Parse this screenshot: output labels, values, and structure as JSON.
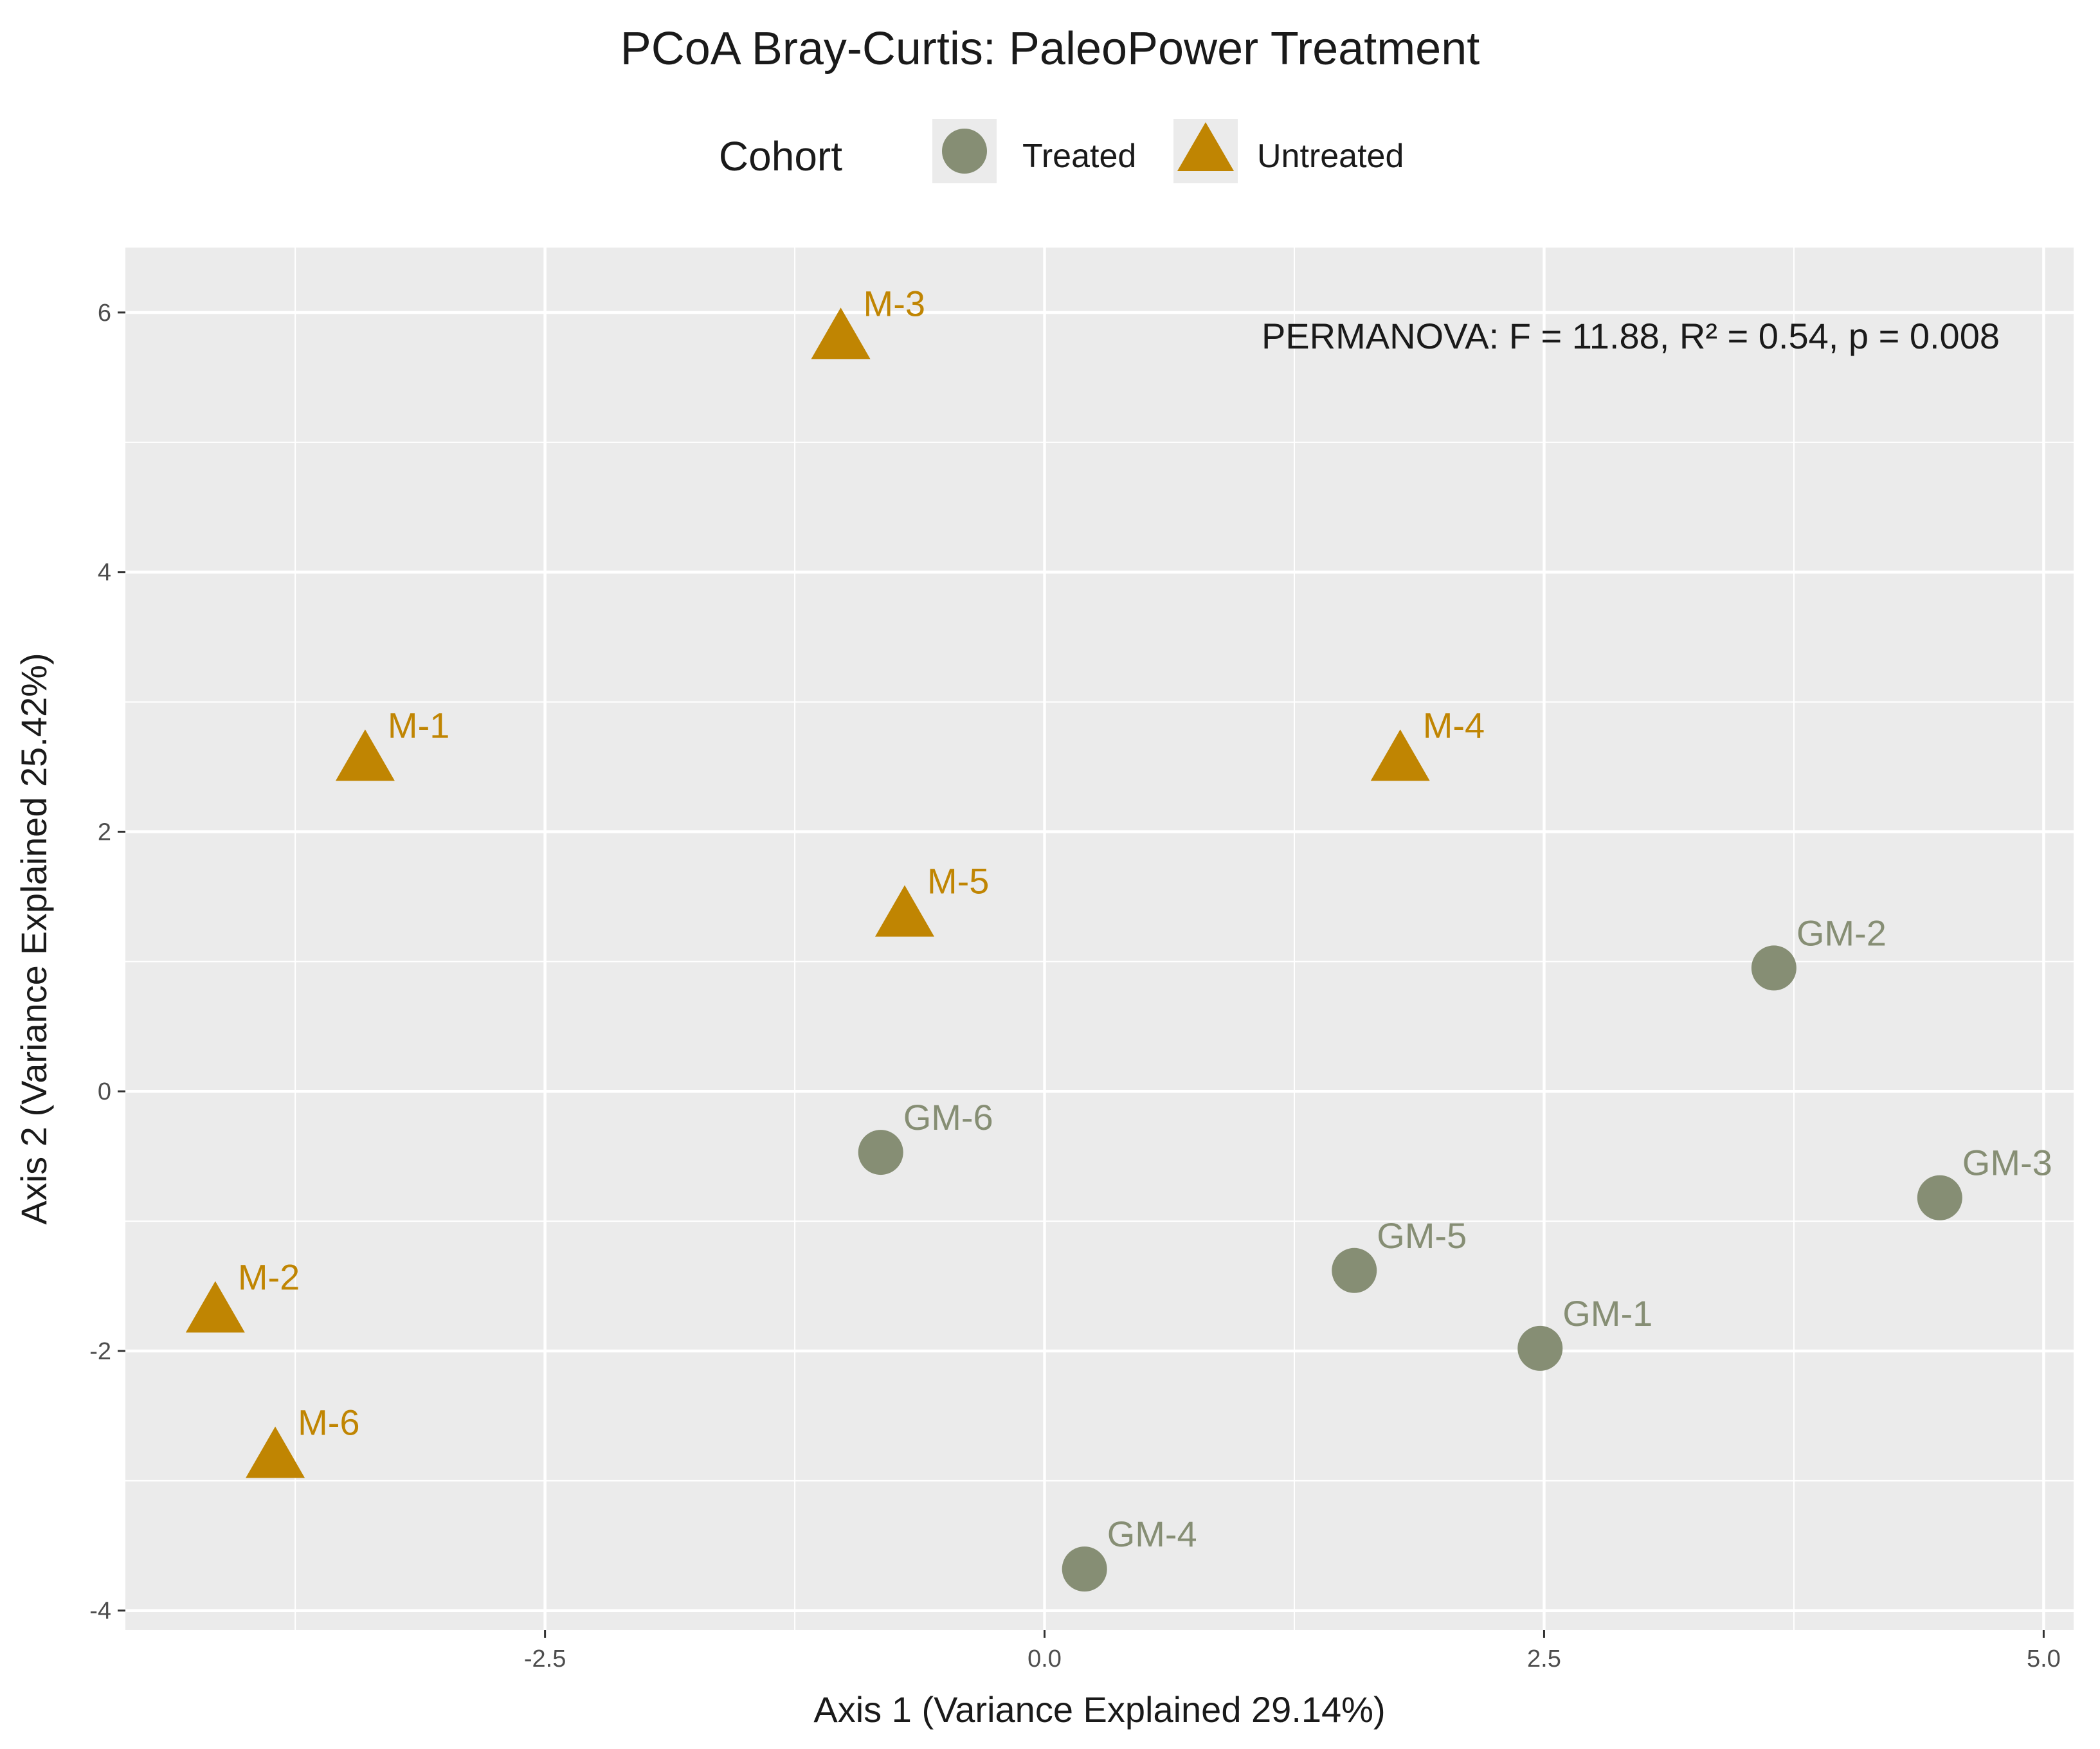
{
  "chart_data": {
    "type": "scatter",
    "title": "PCoA Bray-Curtis: PaleoPower Treatment",
    "xlabel": "Axis 1 (Variance Explained 29.14%)",
    "ylabel": "Axis 2 (Variance Explained 25.42%)",
    "xlim": [
      -4.6,
      5.15
    ],
    "ylim": [
      -4.15,
      6.5
    ],
    "x_ticks": [
      -2.5,
      0.0,
      2.5,
      5.0
    ],
    "x_tick_labels": [
      "-2.5",
      "0.0",
      "2.5",
      "5.0"
    ],
    "y_ticks": [
      -4,
      -2,
      0,
      2,
      4,
      6
    ],
    "y_tick_labels": [
      "-4",
      "-2",
      "0",
      "2",
      "4",
      "6"
    ],
    "grid": true,
    "legend": {
      "title": "Cohort",
      "position": "top",
      "entries": [
        {
          "label": "Treated",
          "shape": "circle",
          "color": "#868E74"
        },
        {
          "label": "Untreated",
          "shape": "triangle",
          "color": "#C08502"
        }
      ]
    },
    "annotation": "PERMANOVA: F = 11.88, R² = 0.54, p = 0.008",
    "series": [
      {
        "name": "Treated",
        "shape": "circle",
        "color": "#868E74",
        "points": [
          {
            "label": "GM-1",
            "x": 2.48,
            "y": -1.98
          },
          {
            "label": "GM-2",
            "x": 3.65,
            "y": 0.95
          },
          {
            "label": "GM-3",
            "x": 4.48,
            "y": -0.82
          },
          {
            "label": "GM-4",
            "x": 0.2,
            "y": -3.68
          },
          {
            "label": "GM-5",
            "x": 1.55,
            "y": -1.38
          },
          {
            "label": "GM-6",
            "x": -0.82,
            "y": -0.47
          }
        ]
      },
      {
        "name": "Untreated",
        "shape": "triangle",
        "color": "#C08502",
        "points": [
          {
            "label": "M-1",
            "x": -3.4,
            "y": 2.55
          },
          {
            "label": "M-2",
            "x": -4.15,
            "y": -1.7
          },
          {
            "label": "M-3",
            "x": -1.02,
            "y": 5.8
          },
          {
            "label": "M-4",
            "x": 1.78,
            "y": 2.55
          },
          {
            "label": "M-5",
            "x": -0.7,
            "y": 1.35
          },
          {
            "label": "M-6",
            "x": -3.85,
            "y": -2.82
          }
        ]
      }
    ]
  },
  "colors": {
    "panel_background": "#EBEBEB",
    "grid": "#FFFFFF",
    "tick_text": "#4D4D4D",
    "text": "#1A1A1A"
  }
}
